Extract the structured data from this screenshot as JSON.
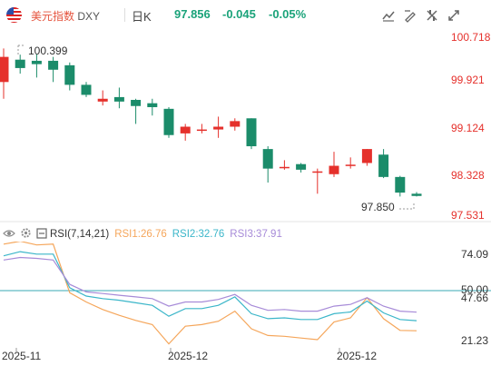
{
  "header": {
    "name_cn": "美元指数",
    "symbol": "DXY",
    "period": "日K",
    "price": "97.856",
    "change": "-0.045",
    "change_pct": "-0.05%"
  },
  "toolbar": {
    "icons": [
      "line-chart-icon",
      "draw-icon",
      "indicator-icon",
      "fullscreen-icon"
    ]
  },
  "colors": {
    "up": "#e5302b",
    "down": "#1b8c6a",
    "rsi1": "#f5a65b",
    "rsi2": "#3bb6c9",
    "rsi3": "#a78bd8",
    "fifty_line": "#3aa8b6"
  },
  "main_chart": {
    "price_labels": [
      "100.718",
      "99.921",
      "99.124",
      "98.328",
      "97.531"
    ],
    "high_label": "100.399",
    "low_label": "97.850"
  },
  "indicator": {
    "title": "RSI(7,14,21)",
    "rsi1_label": "RSI1:26.76",
    "rsi2_label": "RSI2:32.76",
    "rsi3_label": "RSI3:37.91",
    "levels": [
      "74.09",
      "50.00",
      "47.66",
      "21.23"
    ]
  },
  "date_labels": [
    "2025-11",
    "2025-12",
    "2025-12"
  ],
  "chart_data": {
    "type": "candlestick",
    "ylim": [
      97.531,
      100.718
    ],
    "candles": [
      {
        "o": 99.9,
        "c": 100.35,
        "h": 100.5,
        "l": 99.6
      },
      {
        "o": 100.3,
        "c": 100.15,
        "h": 100.39,
        "l": 100.05
      },
      {
        "o": 100.28,
        "c": 100.22,
        "h": 100.4,
        "l": 99.98
      },
      {
        "o": 100.28,
        "c": 100.12,
        "h": 100.35,
        "l": 99.9
      },
      {
        "o": 100.2,
        "c": 99.85,
        "h": 100.25,
        "l": 99.75
      },
      {
        "o": 99.85,
        "c": 99.67,
        "h": 99.9,
        "l": 99.63
      },
      {
        "o": 99.55,
        "c": 99.6,
        "h": 99.75,
        "l": 99.48
      },
      {
        "o": 99.63,
        "c": 99.55,
        "h": 99.8,
        "l": 99.43
      },
      {
        "o": 99.58,
        "c": 99.47,
        "h": 99.6,
        "l": 99.15
      },
      {
        "o": 99.52,
        "c": 99.45,
        "h": 99.6,
        "l": 99.3
      },
      {
        "o": 99.42,
        "c": 98.95,
        "h": 99.45,
        "l": 98.9
      },
      {
        "o": 98.98,
        "c": 99.1,
        "h": 99.15,
        "l": 98.85
      },
      {
        "o": 99.05,
        "c": 99.05,
        "h": 99.15,
        "l": 98.98
      },
      {
        "o": 99.05,
        "c": 99.1,
        "h": 99.28,
        "l": 98.9
      },
      {
        "o": 99.1,
        "c": 99.2,
        "h": 99.25,
        "l": 99.03
      },
      {
        "o": 99.25,
        "c": 98.75,
        "h": 99.25,
        "l": 98.7
      },
      {
        "o": 98.7,
        "c": 98.35,
        "h": 98.75,
        "l": 98.1
      },
      {
        "o": 98.38,
        "c": 98.38,
        "h": 98.5,
        "l": 98.33
      },
      {
        "o": 98.43,
        "c": 98.33,
        "h": 98.45,
        "l": 98.28
      },
      {
        "o": 98.3,
        "c": 98.3,
        "h": 98.35,
        "l": 97.9
      },
      {
        "o": 98.25,
        "c": 98.4,
        "h": 98.65,
        "l": 98.2
      },
      {
        "o": 98.42,
        "c": 98.42,
        "h": 98.55,
        "l": 98.35
      },
      {
        "o": 98.45,
        "c": 98.7,
        "h": 98.7,
        "l": 98.4
      },
      {
        "o": 98.6,
        "c": 98.2,
        "h": 98.7,
        "l": 98.18
      },
      {
        "o": 98.2,
        "c": 97.92,
        "h": 98.22,
        "l": 97.85
      },
      {
        "o": 97.9,
        "c": 97.86,
        "h": 97.93,
        "l": 97.85
      }
    ],
    "rsi": {
      "ylim": [
        15,
        80
      ],
      "rsi1": [
        78.5,
        80.2,
        78.0,
        78.5,
        49.5,
        44.0,
        39.5,
        36.0,
        33.0,
        30.5,
        19.0,
        29.5,
        30.5,
        32.5,
        38.5,
        28.0,
        24.0,
        23.5,
        22.5,
        21.5,
        32.0,
        34.5,
        46.5,
        34.0,
        27.0,
        26.8
      ],
      "rsi2": [
        71.5,
        74.0,
        72.5,
        72.5,
        52.5,
        47.5,
        46.0,
        45.0,
        43.5,
        42.0,
        35.5,
        40.0,
        40.0,
        42.0,
        47.0,
        37.0,
        34.0,
        34.5,
        33.5,
        33.5,
        37.0,
        38.0,
        44.5,
        37.5,
        33.5,
        32.8
      ],
      "rsi3": [
        69.0,
        70.5,
        70.0,
        69.0,
        54.5,
        50.0,
        49.0,
        48.0,
        47.0,
        46.0,
        41.5,
        44.0,
        44.0,
        45.5,
        48.5,
        42.0,
        39.0,
        39.5,
        38.5,
        38.5,
        41.5,
        42.5,
        46.5,
        41.5,
        38.5,
        37.9
      ]
    }
  }
}
